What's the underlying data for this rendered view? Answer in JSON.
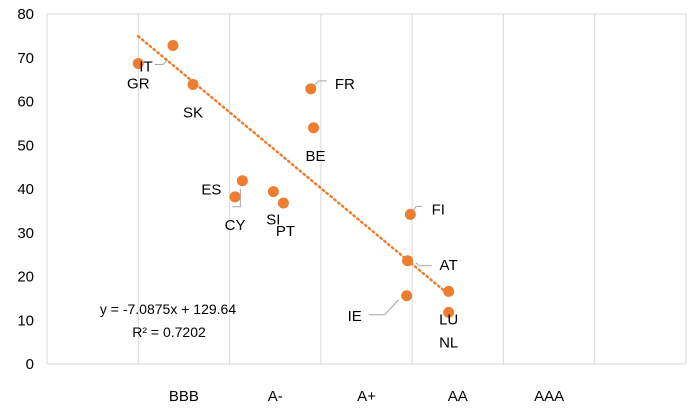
{
  "chart_data": {
    "type": "scatter",
    "title": "",
    "xlabel": "",
    "ylabel": "",
    "xlim": [
      0,
      7
    ],
    "ylim": [
      0,
      80
    ],
    "x_category_ticks": [
      {
        "label": "BBB",
        "x": 1.5
      },
      {
        "label": "A-",
        "x": 2.5
      },
      {
        "label": "A+",
        "x": 3.5
      },
      {
        "label": "AA",
        "x": 4.5
      },
      {
        "label": "AAA",
        "x": 5.5
      }
    ],
    "x_gridlines": [
      1,
      2,
      3,
      4,
      5,
      6
    ],
    "y_ticks": [
      0,
      10,
      20,
      30,
      40,
      50,
      60,
      70,
      80
    ],
    "grid": true,
    "marker_color": "#ED7D31",
    "trendline_color": "#ED7D31",
    "points": [
      {
        "label": "GR",
        "x": 1.0,
        "y": 68.7
      },
      {
        "label": "IT",
        "x": 1.38,
        "y": 72.8
      },
      {
        "label": "SK",
        "x": 1.6,
        "y": 63.9
      },
      {
        "label": "FR",
        "x": 2.89,
        "y": 62.9
      },
      {
        "label": "BE",
        "x": 2.92,
        "y": 54.0
      },
      {
        "label": "ES",
        "x": 2.14,
        "y": 41.9
      },
      {
        "label": "CY",
        "x": 2.06,
        "y": 38.2
      },
      {
        "label": "SI",
        "x": 2.48,
        "y": 39.4
      },
      {
        "label": "PT",
        "x": 2.59,
        "y": 36.8
      },
      {
        "label": "FI",
        "x": 3.98,
        "y": 34.2
      },
      {
        "label": "AT",
        "x": 3.95,
        "y": 23.6
      },
      {
        "label": "IE",
        "x": 3.94,
        "y": 15.6
      },
      {
        "label": "LU",
        "x": 4.4,
        "y": 16.6
      },
      {
        "label": "NL",
        "x": 4.4,
        "y": 11.8
      }
    ],
    "trendline": {
      "type": "linear",
      "x_range": [
        1.0,
        4.4
      ],
      "y_range": [
        74.9,
        15.9
      ],
      "equation": "y = -7.0875x + 129.64",
      "r_squared": "R² = 0.7202"
    }
  }
}
